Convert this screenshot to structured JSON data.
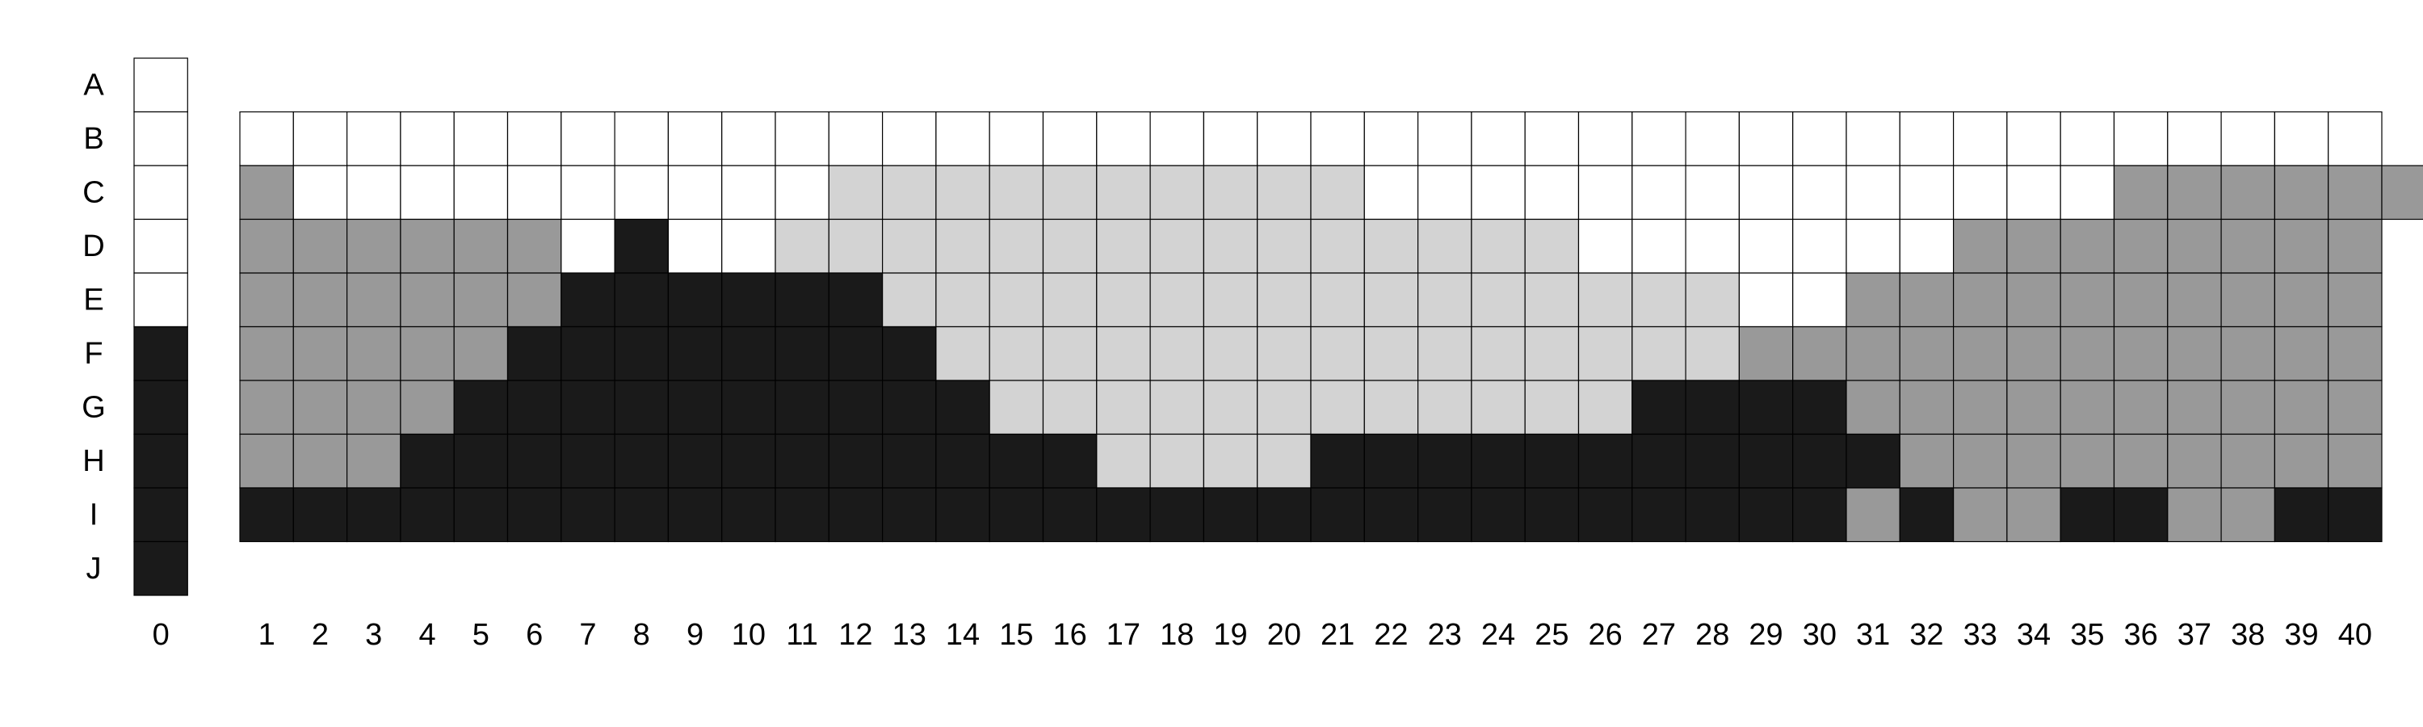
{
  "colors": {
    "white": "#ffffff",
    "light": "#d3d3d3",
    "gray": "#999999",
    "black": "#1a1a1a"
  },
  "row_labels": [
    "A",
    "B",
    "C",
    "D",
    "E",
    "F",
    "G",
    "H",
    "I",
    "J"
  ],
  "column_labels": [
    "0",
    "1",
    "2",
    "3",
    "4",
    "5",
    "6",
    "7",
    "8",
    "9",
    "10",
    "11",
    "12",
    "13",
    "14",
    "15",
    "16",
    "17",
    "18",
    "19",
    "20",
    "21",
    "22",
    "23",
    "24",
    "25",
    "26",
    "27",
    "28",
    "29",
    "30",
    "31",
    "32",
    "33",
    "34",
    "35",
    "36",
    "37",
    "38",
    "39",
    "40"
  ],
  "column_zero": [
    "white",
    "white",
    "white",
    "white",
    "white",
    "black",
    "black",
    "black",
    "black",
    "black"
  ],
  "main_grid": {
    "first_row": "B",
    "rows": [
      "wwwwwwwwwwwwwwwwwwwwwwwwwwwwwwwwwwwwwwww",
      "gwwwwwwwwwwLLLLLLLLLLwwwwwwwwwwwwwwgggggg",
      "ggggggwbwwLLLLLLLLLLLLLLLwwwwwwwgggggggg",
      "ggggggbbbbbbLLLLLLLLLLLLLLLLwwgggggggggg",
      "gggggbbbbbbbbLLLLLLLLLLLLLLLgggggggggggg",
      "ggggbbbbbbbbbbLLLLLLLLLLLLbbbbgggggggggg",
      "gggbbbbbbbbbbbbbLLLLbbbbbbbbbbbggggggggg",
      "bbbbbbbbbbbbbbbbbbbbbbbbbbbbbbgbggbbggbb"
    ]
  }
}
